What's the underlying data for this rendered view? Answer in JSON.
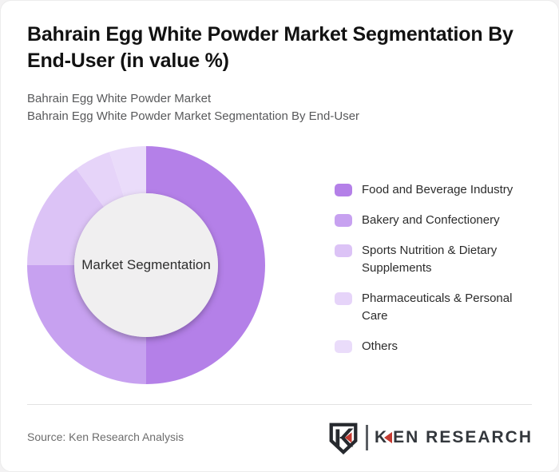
{
  "header": {
    "title_line1": "Bahrain Egg White Powder Market Segmentation By",
    "title_line2": "End-User (in value %)",
    "subtitle_line1": "Bahrain Egg White Powder Market",
    "subtitle_line2": "Bahrain Egg White Powder Market Segmentation By End-User"
  },
  "chart_data": {
    "type": "pie",
    "donut": true,
    "title": "Bahrain Egg White Powder Market Segmentation By End-User (in value %)",
    "categories": [
      "Food and Beverage Industry",
      "Bakery and Confectionery",
      "Sports Nutrition & Dietary Supplements",
      "Pharmaceuticals & Personal Care",
      "Others"
    ],
    "values": [
      50,
      25,
      15,
      5,
      5
    ],
    "unit": "%",
    "colors": [
      "#b480e8",
      "#c7a1f0",
      "#dcc3f6",
      "#e6d4f9",
      "#eadcfa"
    ],
    "center_label": "Market Segmentation",
    "center_bg": "#f0eff0",
    "start_angle_deg": 0,
    "direction": "clockwise",
    "inner_radius_ratio": 0.605,
    "legend_position": "right"
  },
  "footer": {
    "source": "Source: Ken Research Analysis",
    "logo_k": "K",
    "logo_rest": "EN RESEARCH",
    "logo_colors": {
      "dark": "#26292e",
      "red": "#c43a31",
      "text": "#33373c",
      "divider": "#5a5e63"
    }
  }
}
